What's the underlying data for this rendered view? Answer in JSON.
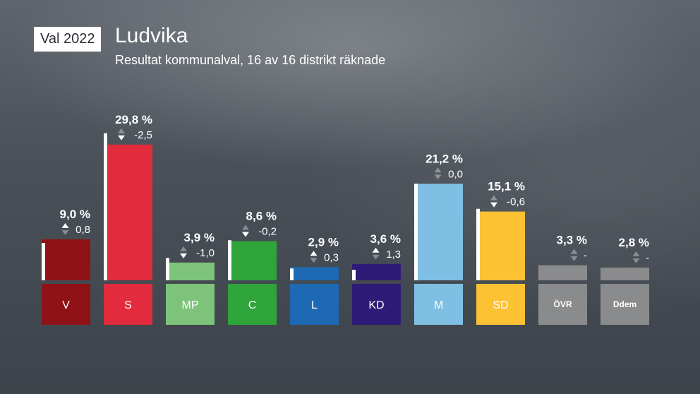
{
  "header": {
    "badge": "Val 2022",
    "title": "Ludvika",
    "subtitle": "Resultat kommunalval, 16 av 16 distrikt räknade"
  },
  "colors": {
    "V": "#8f1216",
    "S": "#e22b3c",
    "MP": "#7dc47a",
    "C": "#2ea43a",
    "L": "#1d69b3",
    "KD": "#2e1b78",
    "M": "#7fbfe3",
    "SD": "#fdc134",
    "ÖVR": "#8a8b8d",
    "Ddem": "#8a8b8d",
    "previous_marker": "#ffffff"
  },
  "chart_data": {
    "type": "bar",
    "categories": [
      "V",
      "S",
      "MP",
      "C",
      "L",
      "KD",
      "M",
      "SD",
      "ÖVR",
      "Ddem"
    ],
    "values": [
      9.0,
      29.8,
      3.9,
      8.6,
      2.9,
      3.6,
      21.2,
      15.1,
      3.3,
      2.8
    ],
    "value_labels": [
      "9,0 %",
      "29,8 %",
      "3,9 %",
      "8,6 %",
      "2,9 %",
      "3,6 %",
      "21,2 %",
      "15,1 %",
      "3,3 %",
      "2,8 %"
    ],
    "changes": [
      0.8,
      -2.5,
      -1.0,
      -0.2,
      0.3,
      1.3,
      0.0,
      -0.6,
      null,
      null
    ],
    "change_labels": [
      "0,8",
      "-2,5",
      "-1,0",
      "-0,2",
      "0,3",
      "1,3",
      "0,0",
      "-0,6",
      "-",
      "-"
    ],
    "previous_values": [
      8.2,
      32.3,
      4.9,
      8.8,
      2.6,
      2.3,
      21.2,
      15.7,
      null,
      null
    ],
    "unit": "%",
    "ylim": [
      0,
      32
    ],
    "grid": false,
    "legend": "none"
  }
}
